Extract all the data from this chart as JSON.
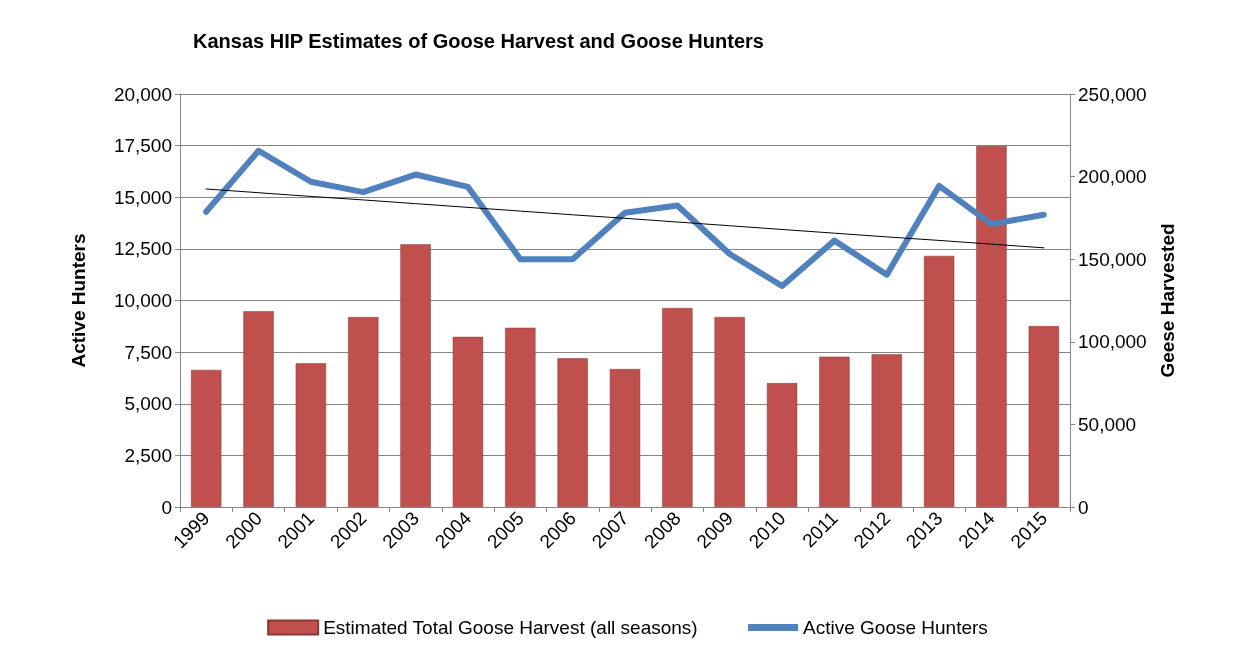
{
  "chart_data": {
    "type": "bar",
    "title": "Kansas HIP Estimates of Goose Harvest and Goose Hunters",
    "ylabel": "Active Hunters",
    "y2label": "Geese Harvested",
    "categories": [
      "1999",
      "2000",
      "2001",
      "2002",
      "2003",
      "2004",
      "2005",
      "2006",
      "2007",
      "2008",
      "2009",
      "2010",
      "2011",
      "2012",
      "2013",
      "2014",
      "2015"
    ],
    "series": [
      {
        "name": "Estimated Total Goose Harvest (all seasons)",
        "axis": "y2",
        "color": "#c0504d",
        "values": [
          83000,
          118500,
          87000,
          115000,
          159000,
          103000,
          108500,
          90000,
          83500,
          120500,
          115000,
          75000,
          91000,
          92500,
          152000,
          218500,
          109500
        ]
      },
      {
        "name": "Active Goose Hunters",
        "type": "line",
        "color": "#4f81bd",
        "values": [
          14300,
          17250,
          15750,
          15250,
          16100,
          15500,
          12000,
          12000,
          14250,
          14600,
          12250,
          10700,
          12900,
          11250,
          15550,
          13700,
          14150
        ]
      },
      {
        "type": "line",
        "color": "#000000",
        "values": [
          15400,
          15220,
          15040,
          14870,
          14690,
          14510,
          14330,
          14150,
          13980,
          13800,
          13620,
          13440,
          13260,
          13080,
          12910,
          12730,
          12550
        ]
      }
    ],
    "ylim": [
      0,
      20000
    ],
    "yticks": [
      0,
      {
        "value": 2500,
        "label": "2,500"
      },
      {
        "value": 5000,
        "label": "5,000"
      },
      {
        "value": 7500,
        "label": "7,500"
      },
      {
        "value": 10000,
        "label": "10,000"
      },
      {
        "value": 12500,
        "label": "12,500"
      },
      {
        "value": 15000,
        "label": "15,000"
      },
      {
        "value": 17500,
        "label": "17,500"
      },
      {
        "value": 20000,
        "label": "20,000"
      }
    ],
    "y2lim": [
      0,
      250000
    ],
    "y2ticks": [
      0,
      {
        "value": 50000,
        "label": "50,000"
      },
      {
        "value": 100000,
        "label": "100,000"
      },
      {
        "value": 150000,
        "label": "150,000"
      },
      {
        "value": 200000,
        "label": "200,000"
      },
      {
        "value": 250000,
        "label": "250,000"
      }
    ],
    "grid": "y",
    "legend": "bottom",
    "marker": "none"
  }
}
